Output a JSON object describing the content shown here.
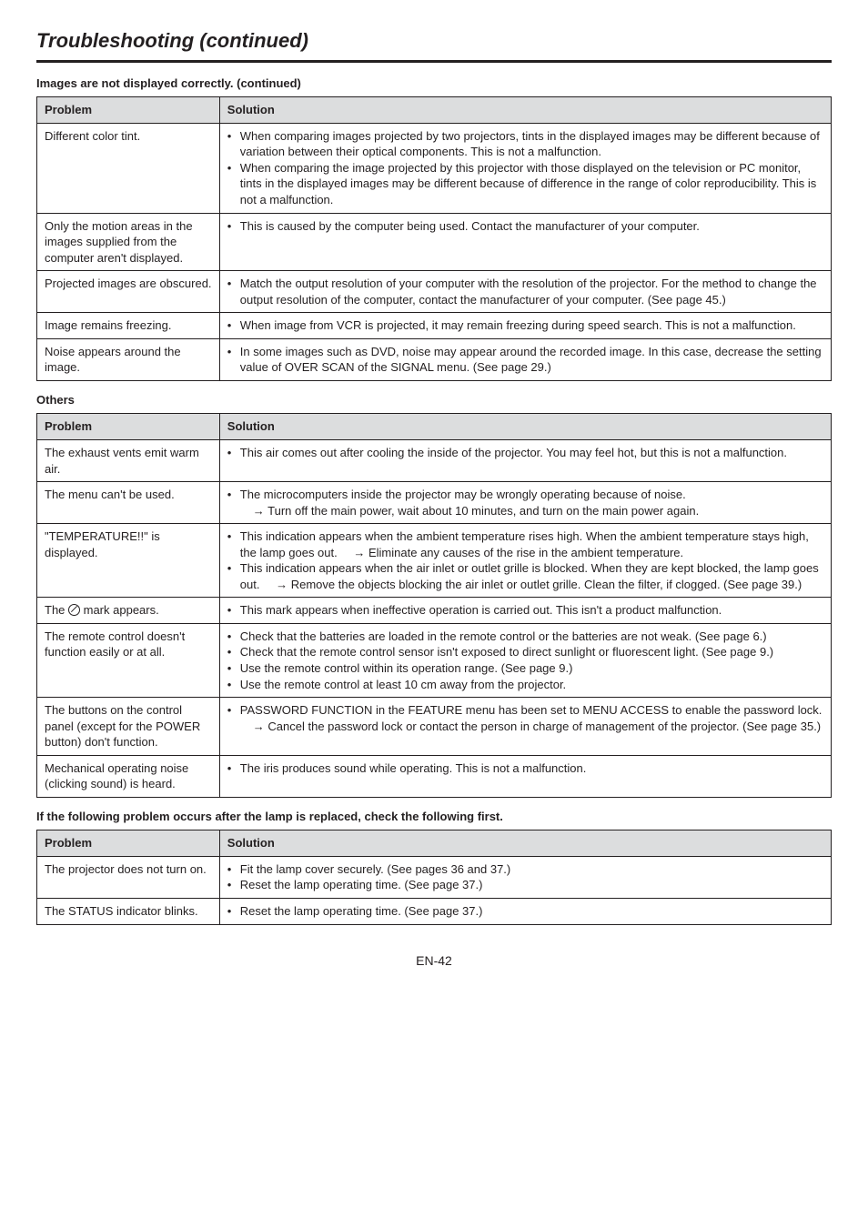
{
  "page_title": "Troubleshooting (continued)",
  "section1": {
    "heading": "Images are not displayed correctly. (continued)",
    "header_problem": "Problem",
    "header_solution": "Solution",
    "rows": [
      {
        "problem": "Different color tint.",
        "b1": "When comparing images projected by two projectors, tints in the displayed images may be different because of variation between their optical components. This is not a malfunction.",
        "b2": "When comparing the image projected by this projector with those displayed on the television or PC monitor, tints in the displayed images may be different because of difference in the range of color reproducibility. This is not a malfunction."
      },
      {
        "problem": "Only the motion areas in the images supplied from the computer aren't displayed.",
        "b1": "This is caused by the computer being used. Contact the manufacturer of your computer."
      },
      {
        "problem": "Projected images are obscured.",
        "b1": "Match the output resolution of your computer with the resolution of the projector. For the method to change the output resolution of the computer, contact the manufacturer of your computer. (See page 45.)"
      },
      {
        "problem": "Image remains freezing.",
        "b1": "When image from VCR is projected, it may remain freezing during speed search. This is not a malfunction."
      },
      {
        "problem": "Noise appears around the image.",
        "b1": "In some images such as DVD, noise may appear around the recorded image. In this case, decrease the setting value of OVER SCAN of the SIGNAL menu. (See page 29.)"
      }
    ]
  },
  "section2": {
    "heading": "Others",
    "header_problem": "Problem",
    "header_solution": "Solution",
    "rows": [
      {
        "problem": "The exhaust vents emit warm air.",
        "b1": "This air comes out after cooling the inside of the projector. You may feel hot, but this is not a malfunction."
      },
      {
        "problem": "The menu can't be used.",
        "b1": "The microcomputers inside the projector may be wrongly operating because of noise.",
        "s1": "→ Turn off the main power, wait about 10 minutes, and turn on the main power again."
      },
      {
        "problem": "\"TEMPERATURE!!\" is displayed.",
        "b1": "This indication appears when the ambient temperature rises high. When the ambient temperature stays high, the lamp goes out.",
        "s1": "→ Eliminate any causes of the rise in the ambient temperature.",
        "b2": "This indication appears when the air inlet or outlet grille is blocked. When they are kept blocked, the lamp goes out.",
        "s2": "→ Remove the objects blocking the air inlet or outlet grille. Clean the filter, if clogged. (See page 39.)"
      },
      {
        "problem_suffix": " mark appears.",
        "b1": "This mark appears when ineffective operation is carried out. This isn't a product malfunction."
      },
      {
        "problem": "The remote control doesn't function easily or at all.",
        "b1": "Check that the batteries are loaded in the remote control or the batteries are not weak. (See page 6.)",
        "b2": "Check that the remote control sensor isn't exposed to direct sunlight or fluorescent light. (See page 9.)",
        "b3": "Use the remote control within its operation range. (See page 9.)",
        "b4": "Use the remote control at least 10 cm away from the projector."
      },
      {
        "problem": "The buttons on the control panel (except for the POWER button) don't function.",
        "b1": "PASSWORD FUNCTION in the FEATURE menu has been set to MENU ACCESS to enable the password lock.",
        "s1": "→ Cancel the password lock or contact the person in charge of management of the projector. (See page 35.)"
      },
      {
        "problem": "Mechanical operating noise (clicking sound) is heard.",
        "b1": "The iris produces sound while operating. This is not a malfunction."
      }
    ]
  },
  "section3": {
    "heading": "If the following problem occurs after the lamp is replaced, check the following first.",
    "header_problem": "Problem",
    "header_solution": "Solution",
    "rows": [
      {
        "problem": "The projector does not turn on.",
        "b1": "Fit the lamp cover securely. (See pages 36 and 37.)",
        "b2": "Reset the lamp operating time. (See page 37.)"
      },
      {
        "problem": "The STATUS indicator blinks.",
        "b1": "Reset the lamp operating time. (See page 37.)"
      }
    ]
  },
  "page_number": "EN-42",
  "the_prefix": "The "
}
